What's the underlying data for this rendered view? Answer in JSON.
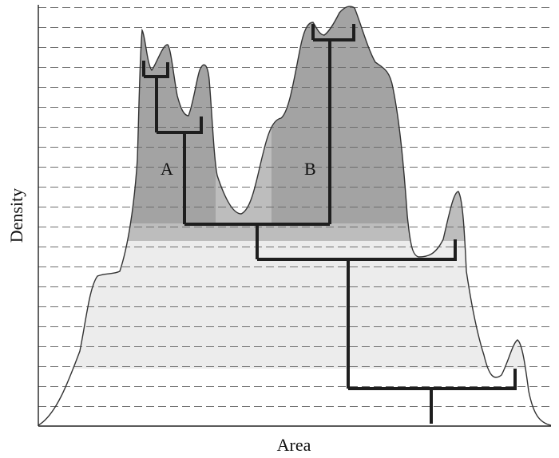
{
  "axes": {
    "x_label": "Area",
    "y_label": "Density"
  },
  "cluster_labels": {
    "a": "A",
    "b": "B"
  },
  "colors": {
    "curve_stroke": "#333333",
    "region_light": "#ececec",
    "region_mid": "#bdbdbd",
    "region_dark": "#a0a0a0",
    "dendrogram": "#1e1e1e",
    "gridline": "#6e6e6e"
  },
  "description_levels": 21
}
